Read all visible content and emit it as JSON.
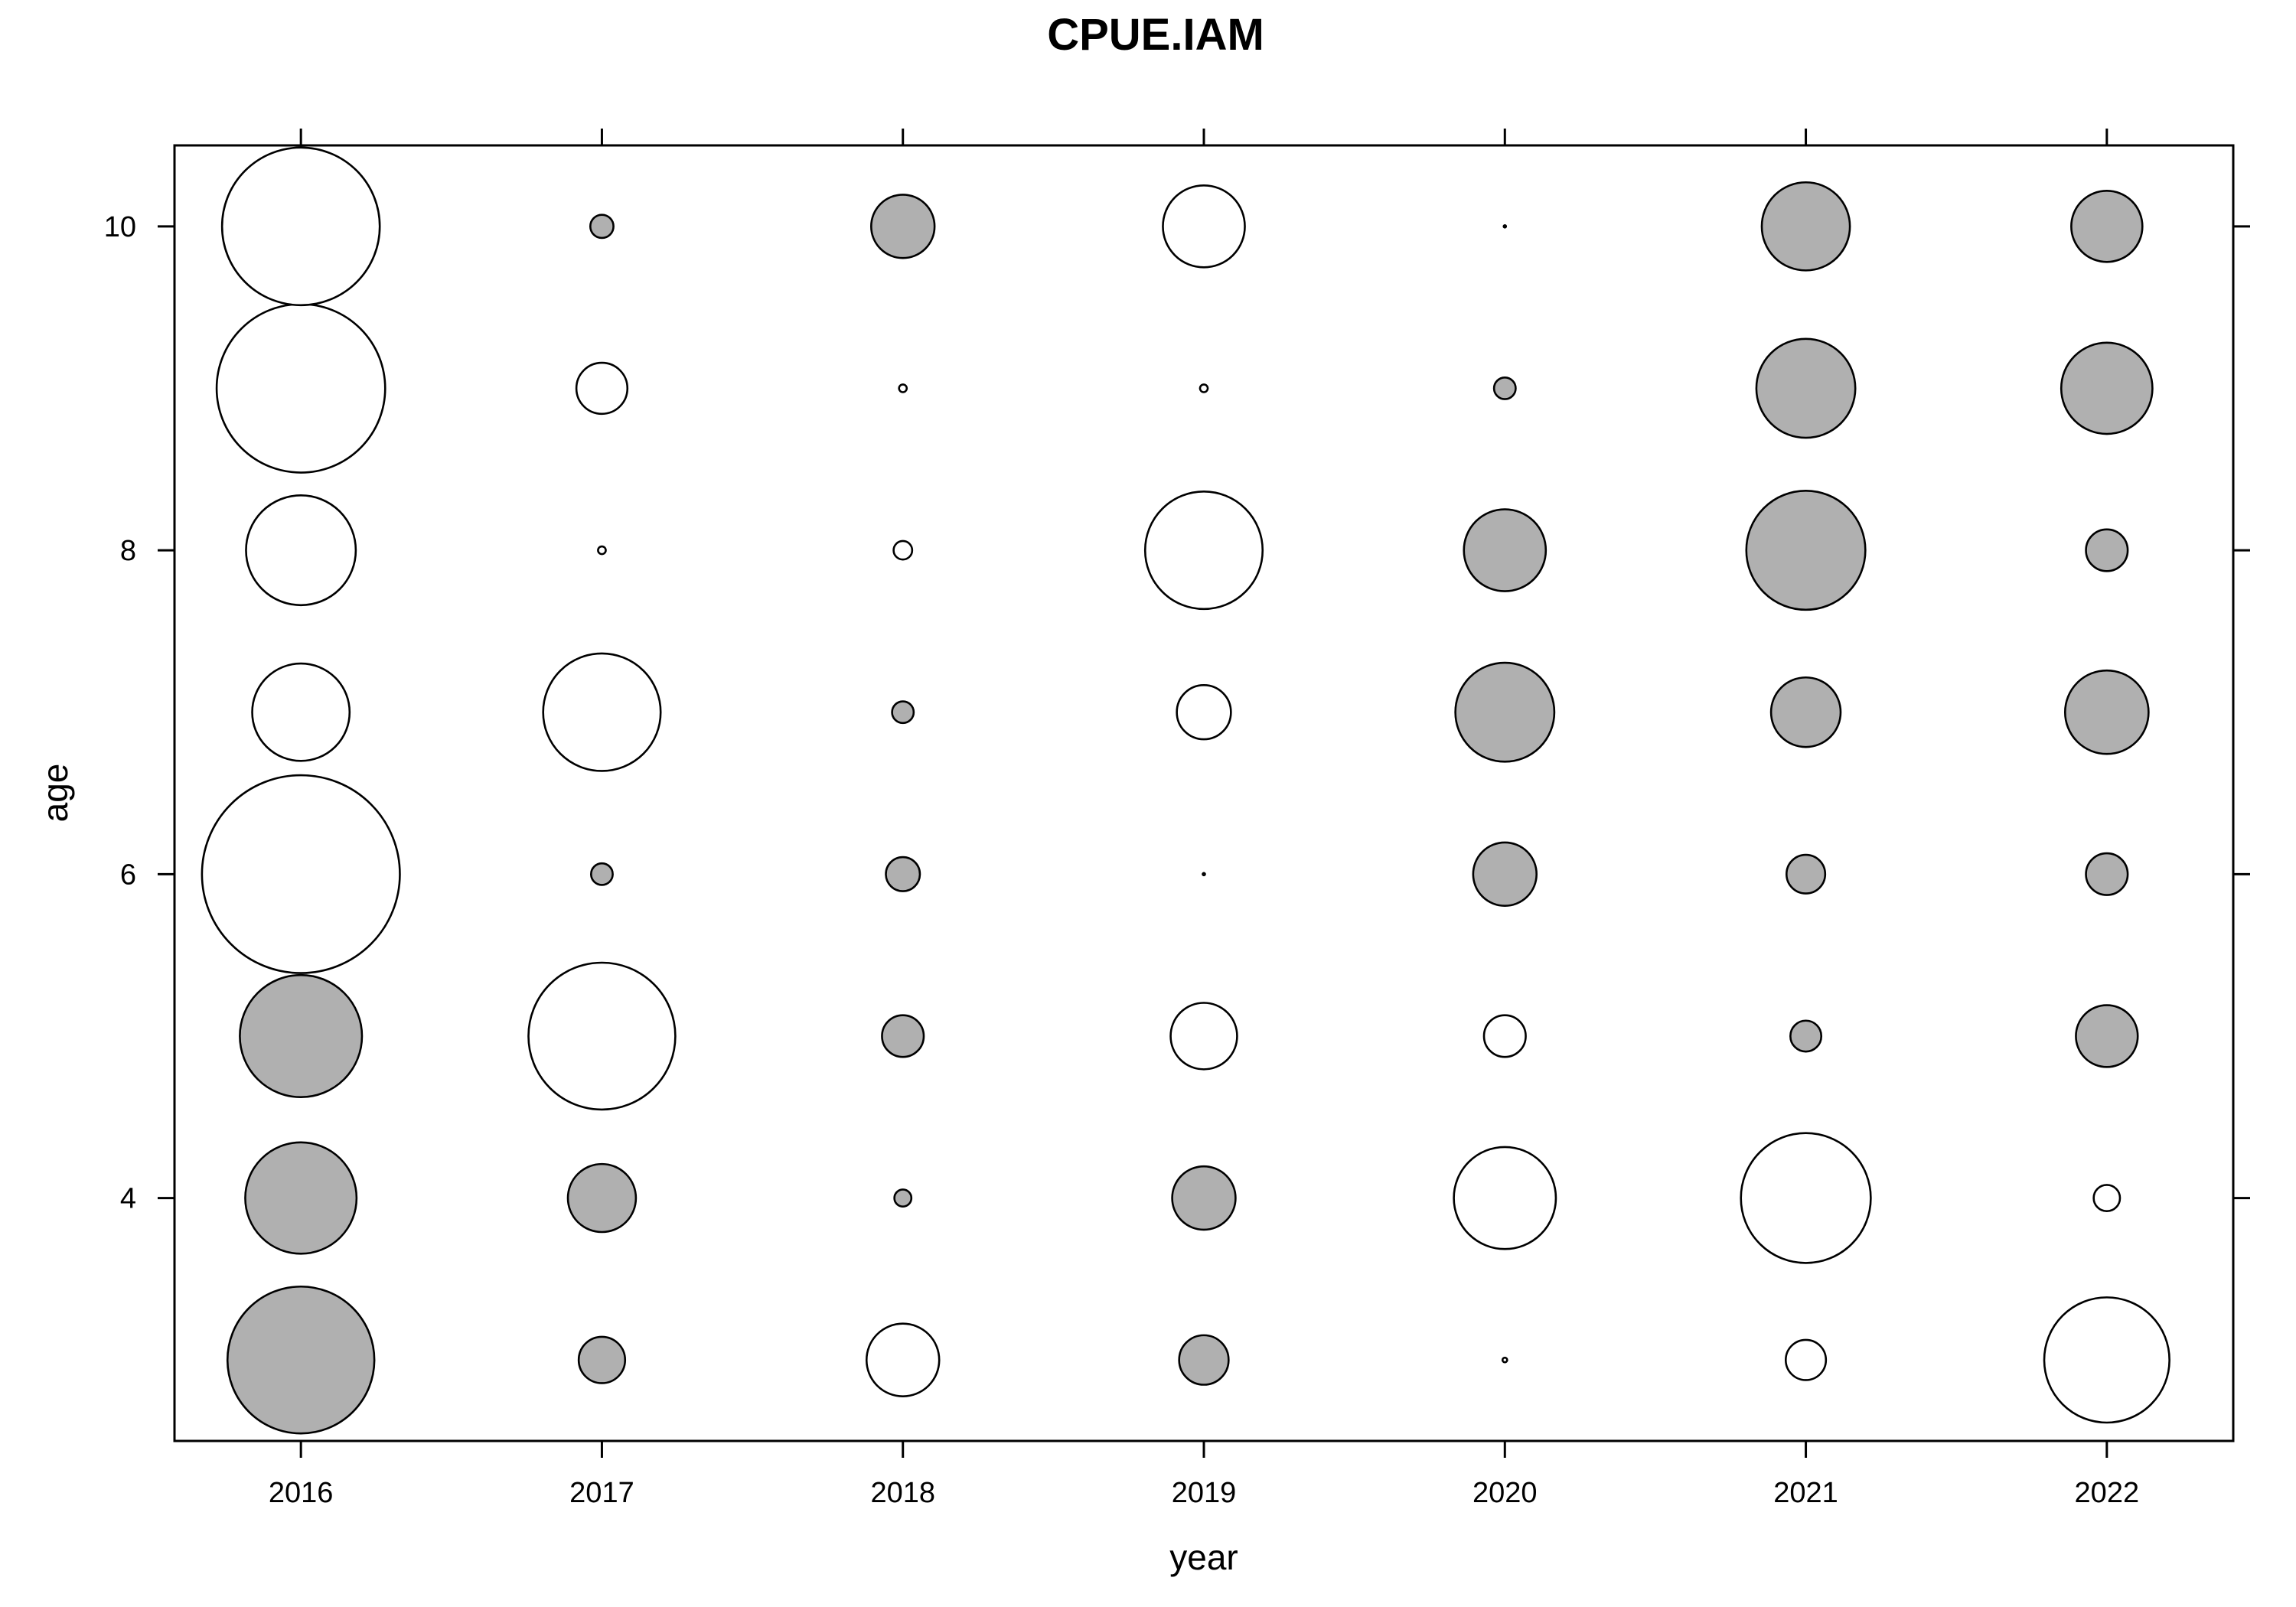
{
  "chart_data": {
    "type": "scatter",
    "subtype": "bubble",
    "title": "CPUE.IAM",
    "xlabel": "year",
    "ylabel": "age",
    "x_ticks": [
      "2016",
      "2017",
      "2018",
      "2019",
      "2020",
      "2021",
      "2022"
    ],
    "y_ticks": [
      "4",
      "6",
      "8",
      "10"
    ],
    "xlim": [
      2015.58,
      2022.42
    ],
    "ylim": [
      2.5,
      10.5
    ],
    "grid": false,
    "legend": "none",
    "colors": {
      "positive": "#ffffff",
      "negative": "#b0b0b0",
      "outline": "#000000"
    },
    "encoding": "bubble radius proportional to absolute value; white = positive, grey = negative",
    "points": [
      {
        "year": 2016,
        "age": 3,
        "value": -0.95
      },
      {
        "year": 2016,
        "age": 4,
        "value": -0.72
      },
      {
        "year": 2016,
        "age": 5,
        "value": -0.79
      },
      {
        "year": 2016,
        "age": 6,
        "value": 1.28
      },
      {
        "year": 2016,
        "age": 7,
        "value": 0.63
      },
      {
        "year": 2016,
        "age": 8,
        "value": 0.71
      },
      {
        "year": 2016,
        "age": 9,
        "value": 1.09
      },
      {
        "year": 2016,
        "age": 10,
        "value": 1.02
      },
      {
        "year": 2017,
        "age": 3,
        "value": -0.3
      },
      {
        "year": 2017,
        "age": 4,
        "value": -0.44
      },
      {
        "year": 2017,
        "age": 5,
        "value": 0.95
      },
      {
        "year": 2017,
        "age": 6,
        "value": -0.14
      },
      {
        "year": 2017,
        "age": 7,
        "value": 0.76
      },
      {
        "year": 2017,
        "age": 8,
        "value": 0.05
      },
      {
        "year": 2017,
        "age": 9,
        "value": 0.33
      },
      {
        "year": 2017,
        "age": 10,
        "value": -0.15
      },
      {
        "year": 2018,
        "age": 3,
        "value": 0.47
      },
      {
        "year": 2018,
        "age": 4,
        "value": -0.11
      },
      {
        "year": 2018,
        "age": 5,
        "value": -0.27
      },
      {
        "year": 2018,
        "age": 6,
        "value": -0.22
      },
      {
        "year": 2018,
        "age": 7,
        "value": -0.14
      },
      {
        "year": 2018,
        "age": 8,
        "value": 0.12
      },
      {
        "year": 2018,
        "age": 9,
        "value": 0.05
      },
      {
        "year": 2018,
        "age": 10,
        "value": -0.41
      },
      {
        "year": 2019,
        "age": 3,
        "value": -0.32
      },
      {
        "year": 2019,
        "age": 4,
        "value": -0.41
      },
      {
        "year": 2019,
        "age": 5,
        "value": 0.43
      },
      {
        "year": 2019,
        "age": 6,
        "value": 0.01
      },
      {
        "year": 2019,
        "age": 7,
        "value": 0.35
      },
      {
        "year": 2019,
        "age": 8,
        "value": 0.76
      },
      {
        "year": 2019,
        "age": 9,
        "value": 0.05
      },
      {
        "year": 2019,
        "age": 10,
        "value": 0.53
      },
      {
        "year": 2020,
        "age": 3,
        "value": 0.03
      },
      {
        "year": 2020,
        "age": 4,
        "value": 0.66
      },
      {
        "year": 2020,
        "age": 5,
        "value": 0.27
      },
      {
        "year": 2020,
        "age": 6,
        "value": -0.41
      },
      {
        "year": 2020,
        "age": 7,
        "value": -0.64
      },
      {
        "year": 2020,
        "age": 8,
        "value": -0.53
      },
      {
        "year": 2020,
        "age": 9,
        "value": -0.14
      },
      {
        "year": 2020,
        "age": 10,
        "value": 0.01
      },
      {
        "year": 2021,
        "age": 3,
        "value": 0.26
      },
      {
        "year": 2021,
        "age": 4,
        "value": 0.84
      },
      {
        "year": 2021,
        "age": 5,
        "value": -0.2
      },
      {
        "year": 2021,
        "age": 6,
        "value": -0.25
      },
      {
        "year": 2021,
        "age": 7,
        "value": -0.45
      },
      {
        "year": 2021,
        "age": 8,
        "value": -0.77
      },
      {
        "year": 2021,
        "age": 9,
        "value": -0.64
      },
      {
        "year": 2021,
        "age": 10,
        "value": -0.57
      },
      {
        "year": 2022,
        "age": 3,
        "value": 0.81
      },
      {
        "year": 2022,
        "age": 4,
        "value": 0.17
      },
      {
        "year": 2022,
        "age": 5,
        "value": -0.4
      },
      {
        "year": 2022,
        "age": 6,
        "value": -0.27
      },
      {
        "year": 2022,
        "age": 7,
        "value": -0.54
      },
      {
        "year": 2022,
        "age": 8,
        "value": -0.27
      },
      {
        "year": 2022,
        "age": 9,
        "value": -0.59
      },
      {
        "year": 2022,
        "age": 10,
        "value": -0.46
      }
    ]
  }
}
